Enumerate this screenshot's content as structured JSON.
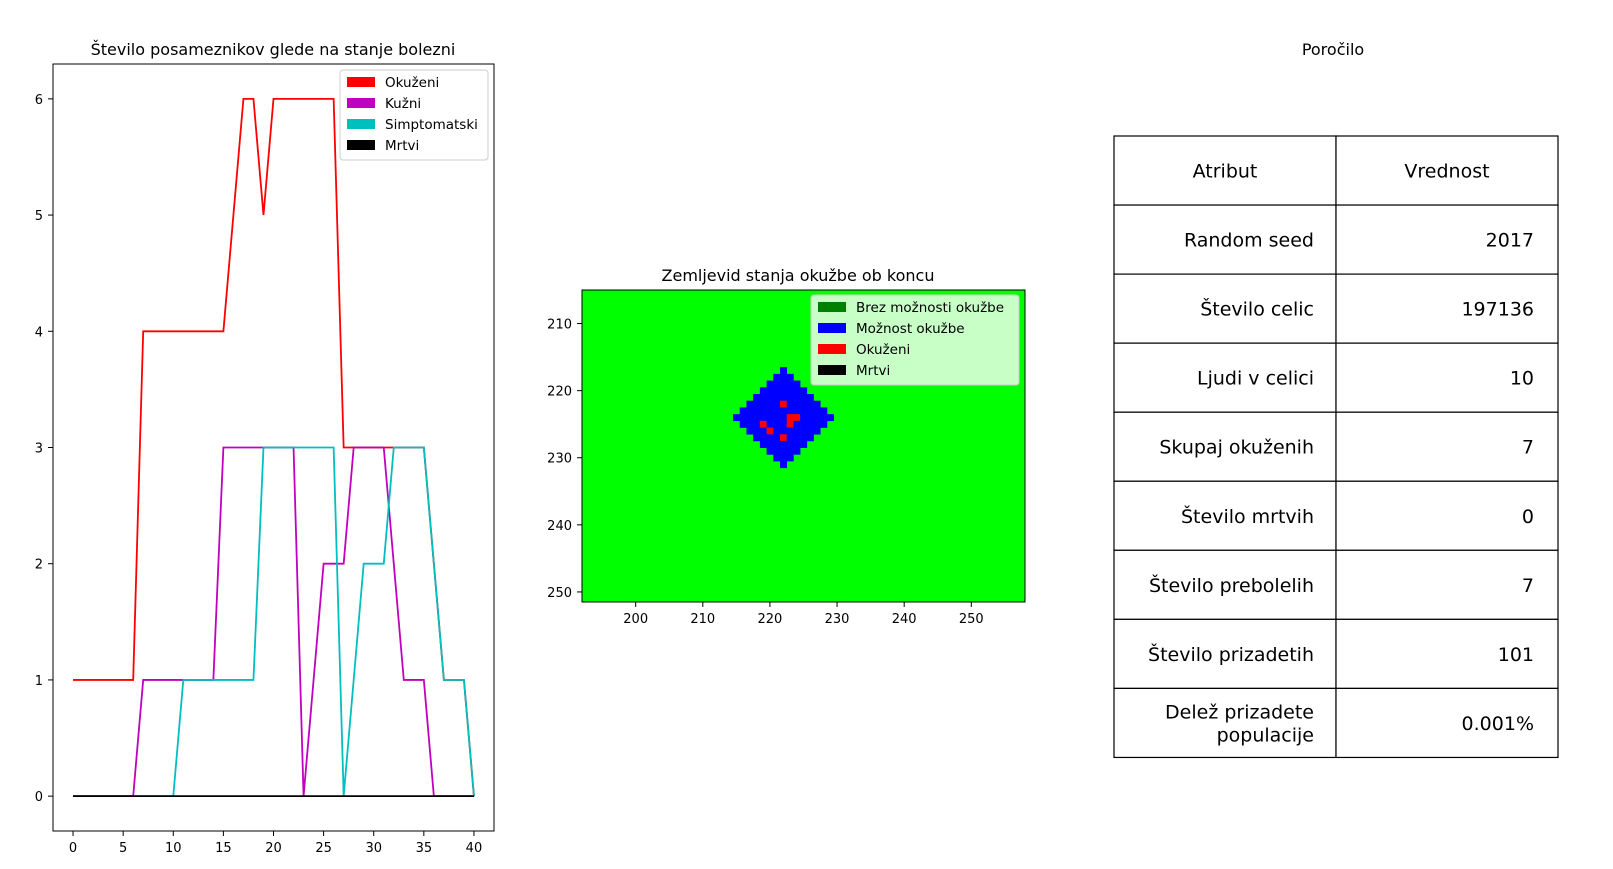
{
  "charts": [
    {
      "type": "line",
      "title": "Število posameznikov glede na stanje bolezni",
      "x": [
        0,
        1,
        2,
        3,
        4,
        5,
        6,
        7,
        8,
        9,
        10,
        11,
        12,
        13,
        14,
        15,
        16,
        17,
        18,
        19,
        20,
        21,
        22,
        23,
        24,
        25,
        26,
        27,
        28,
        29,
        30,
        31,
        32,
        33,
        34,
        35,
        36,
        37,
        38,
        39,
        40
      ],
      "xticks": [
        0,
        5,
        10,
        15,
        20,
        25,
        30,
        35,
        40
      ],
      "yticks": [
        0,
        1,
        2,
        3,
        4,
        5,
        6
      ],
      "xlim": [
        -2,
        42
      ],
      "ylim": [
        -0.3,
        6.3
      ],
      "legend_position": "upper right",
      "series": [
        {
          "name": "Okuženi",
          "color": "#ff0000",
          "values": [
            1,
            1,
            1,
            1,
            1,
            1,
            1,
            4,
            4,
            4,
            4,
            4,
            4,
            4,
            4,
            4,
            5,
            6,
            6,
            5,
            6,
            6,
            6,
            6,
            6,
            6,
            6,
            3,
            3,
            3,
            3,
            3,
            3,
            3,
            3,
            3,
            2,
            1,
            1,
            1,
            0
          ]
        },
        {
          "name": "Kužni",
          "color": "#c000c0",
          "values": [
            0,
            0,
            0,
            0,
            0,
            0,
            0,
            1,
            1,
            1,
            1,
            1,
            1,
            1,
            1,
            3,
            3,
            3,
            3,
            3,
            3,
            3,
            3,
            0,
            1,
            2,
            2,
            2,
            3,
            3,
            3,
            3,
            2,
            1,
            1,
            1,
            0,
            0,
            0,
            0,
            0
          ]
        },
        {
          "name": "Simptomatski",
          "color": "#00bfbf",
          "values": [
            0,
            0,
            0,
            0,
            0,
            0,
            0,
            0,
            0,
            0,
            0,
            1,
            1,
            1,
            1,
            1,
            1,
            1,
            1,
            3,
            3,
            3,
            3,
            3,
            3,
            3,
            3,
            0,
            1,
            2,
            2,
            2,
            3,
            3,
            3,
            3,
            2,
            1,
            1,
            1,
            0
          ]
        },
        {
          "name": "Mrtvi",
          "color": "#000000",
          "values": [
            0,
            0,
            0,
            0,
            0,
            0,
            0,
            0,
            0,
            0,
            0,
            0,
            0,
            0,
            0,
            0,
            0,
            0,
            0,
            0,
            0,
            0,
            0,
            0,
            0,
            0,
            0,
            0,
            0,
            0,
            0,
            0,
            0,
            0,
            0,
            0,
            0,
            0,
            0,
            0,
            0
          ]
        }
      ]
    },
    {
      "type": "heatmap",
      "title": "Zemljevid stanja okužbe ob koncu",
      "xlim": [
        192,
        258
      ],
      "ylim": [
        205,
        251.5
      ],
      "xticks": [
        200,
        210,
        220,
        230,
        240,
        250
      ],
      "yticks": [
        210,
        220,
        230,
        240,
        250
      ],
      "background_category": "Brez možnosti okužbe",
      "legend_position": "upper right",
      "categories": [
        {
          "name": "Brez možnosti okužbe",
          "color": "#008000",
          "map_color": "#00ff00"
        },
        {
          "name": "Možnost okužbe",
          "color": "#0000ff",
          "map_color": "#0000ff"
        },
        {
          "name": "Okuženi",
          "color": "#ff0000",
          "map_color": "#ff0000"
        },
        {
          "name": "Mrtvi",
          "color": "#000000",
          "map_color": "#000000"
        }
      ],
      "region_center": [
        222,
        224
      ],
      "region_radius": 7,
      "red_cells": [
        [
          222,
          222
        ],
        [
          219,
          225
        ],
        [
          220,
          226
        ],
        [
          223,
          224
        ],
        [
          224,
          224
        ],
        [
          223,
          225
        ],
        [
          222,
          227
        ]
      ]
    }
  ],
  "report": {
    "title": "Poročilo",
    "headers": [
      "Atribut",
      "Vrednost"
    ],
    "rows": [
      [
        "Random seed",
        "2017"
      ],
      [
        "Število celic",
        "197136"
      ],
      [
        "Ljudi v celici",
        "10"
      ],
      [
        "Skupaj okuženih",
        "7"
      ],
      [
        "Število mrtvih",
        "0"
      ],
      [
        "Število prebolelih",
        "7"
      ],
      [
        "Število prizadetih",
        "101"
      ],
      [
        "Delež prizadete\npopulacije",
        "0.001%"
      ]
    ]
  }
}
